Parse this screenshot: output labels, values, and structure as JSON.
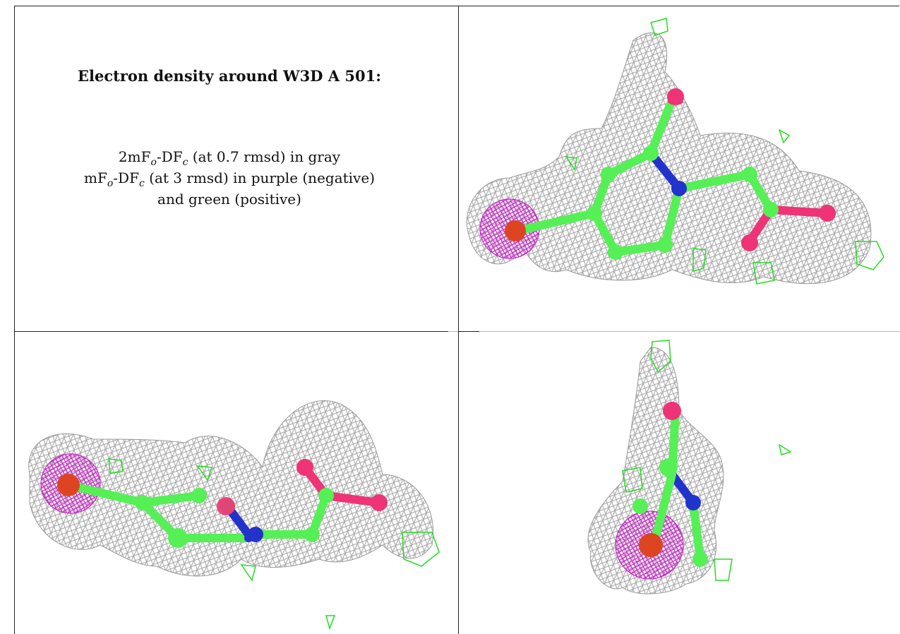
{
  "caption": {
    "title": "Electron density around W3D A 501:",
    "line1": {
      "a": "2mF",
      "a_sub": "o",
      "b": "-DF",
      "b_sub": "c",
      "c": " (at 0.7 rmsd) in gray"
    },
    "line2": {
      "a": "mF",
      "a_sub": "o",
      "b": "-DF",
      "b_sub": "c",
      "c": " (at 3 rmsd) in purple (negative)"
    },
    "line3": "and green (positive)"
  },
  "panels": [
    {
      "name": "top-right-view"
    },
    {
      "name": "bottom-left-view"
    },
    {
      "name": "bottom-right-view"
    }
  ],
  "colors": {
    "density_gray": "#a8a8a8",
    "negative_purple": "#cc22cc",
    "positive_green": "#22dd22",
    "carbon": "#55f055",
    "nitrogen": "#2233cc",
    "oxygen": "#ee3377",
    "metal": "#dd4422"
  }
}
